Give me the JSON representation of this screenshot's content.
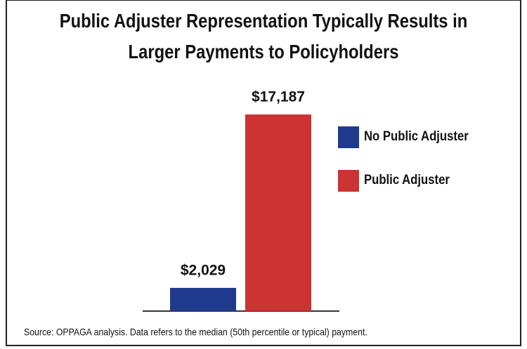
{
  "chart_data": {
    "type": "bar",
    "title": "Public Adjuster Representation Typically Results in Larger Payments to Policyholders",
    "categories": [
      null
    ],
    "series": [
      {
        "name": "No Public Adjuster",
        "color": "#1f3a8c",
        "values": [
          2029
        ],
        "value_labels": [
          "$2,029"
        ]
      },
      {
        "name": "Public Adjuster",
        "color": "#cc3333",
        "values": [
          17187
        ],
        "value_labels": [
          "$17,187"
        ]
      }
    ],
    "legend": "right",
    "source": "Source: OPPAGA analysis. Data refers to the median (50th percentile or typical) payment."
  }
}
